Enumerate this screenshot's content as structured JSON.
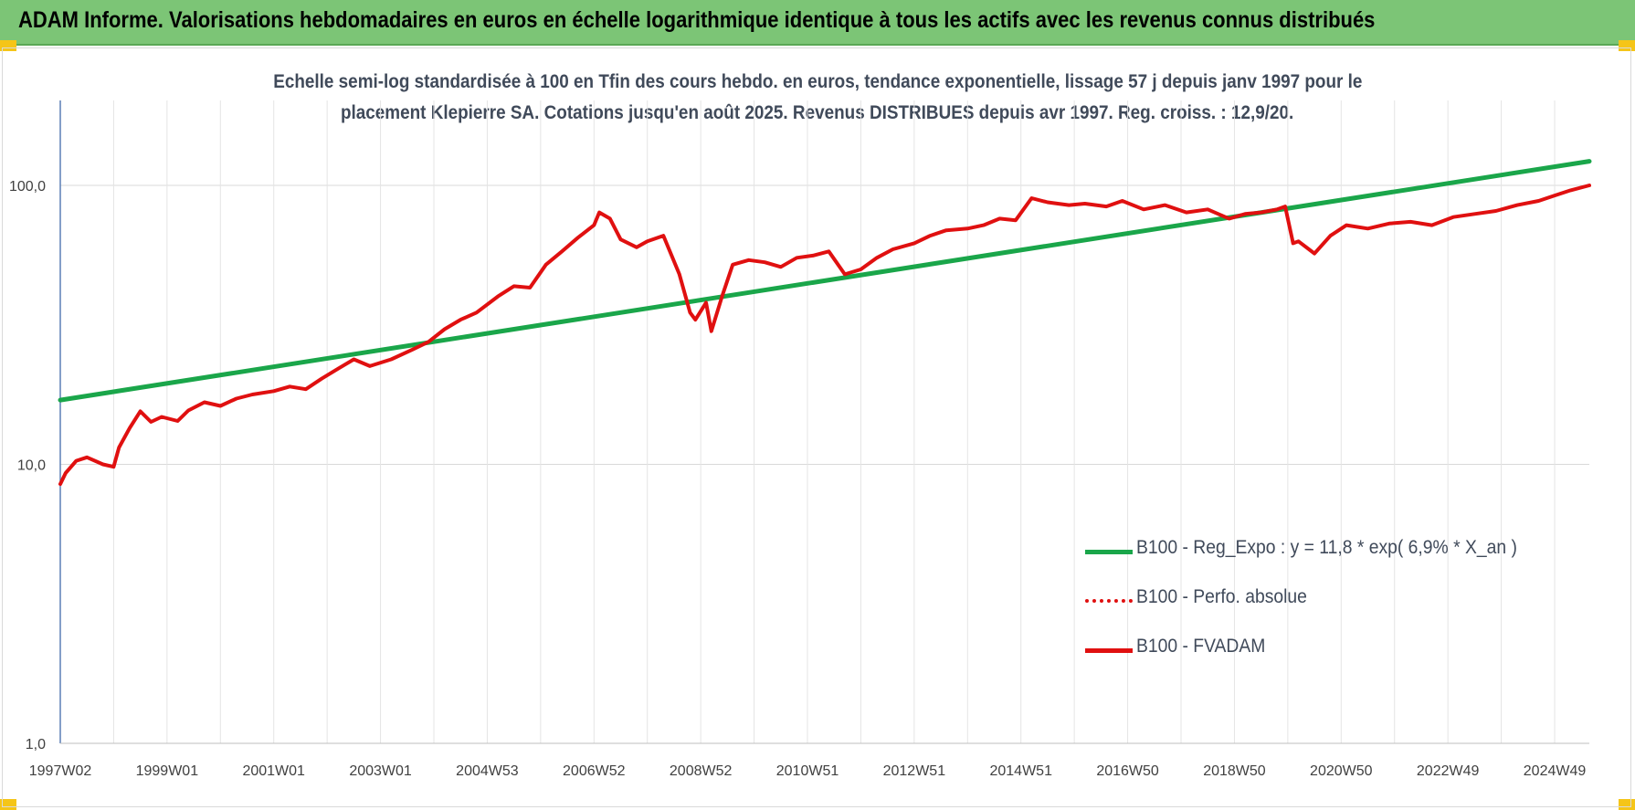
{
  "header": {
    "title": "ADAM Informe. Valorisations hebdomadaires en euros en échelle logarithmique identique à tous les actifs avec les revenus connus distribués"
  },
  "chart_data": {
    "type": "line",
    "title_line1": "Echelle semi-log standardisée à 100 en Tfin des cours hebdo. en euros, tendance exponentielle, lissage 57 j depuis janv 1997 pour le",
    "title_line2": "placement Klepierre SA. Cotations jusqu'en août 2025. Revenus DISTRIBUES depuis avr 1997. Reg. croiss. : 12,9/20.",
    "y_scale": "log",
    "ylim": [
      1,
      200
    ],
    "y_ticks": [
      {
        "value": 1,
        "label": "1,0"
      },
      {
        "value": 10,
        "label": "10,0"
      },
      {
        "value": 100,
        "label": "100,0"
      }
    ],
    "xlim": [
      1997.0,
      2025.65
    ],
    "x_ticks": [
      {
        "value": 1997.0,
        "label": "1997W02"
      },
      {
        "value": 1999.0,
        "label": "1999W01"
      },
      {
        "value": 2001.0,
        "label": "2001W01"
      },
      {
        "value": 2003.0,
        "label": "2003W01"
      },
      {
        "value": 2005.0,
        "label": "2004W53"
      },
      {
        "value": 2007.0,
        "label": "2006W52"
      },
      {
        "value": 2009.0,
        "label": "2008W52"
      },
      {
        "value": 2011.0,
        "label": "2010W51"
      },
      {
        "value": 2013.0,
        "label": "2012W51"
      },
      {
        "value": 2015.0,
        "label": "2014W51"
      },
      {
        "value": 2017.0,
        "label": "2016W50"
      },
      {
        "value": 2019.0,
        "label": "2018W50"
      },
      {
        "value": 2021.0,
        "label": "2020W50"
      },
      {
        "value": 2023.0,
        "label": "2022W49"
      },
      {
        "value": 2025.0,
        "label": "2024W49"
      }
    ],
    "grid": true,
    "legend_position": "bottom-right",
    "series": [
      {
        "name": "B100 - Reg_Expo : y = 11,8 * exp( 6,9% *  X_an )",
        "color": "#1aa64a",
        "style": "solid",
        "x": [
          1997.0,
          2025.65
        ],
        "y": [
          17.0,
          122.0
        ]
      },
      {
        "name": "B100 - Perfo. absolue",
        "color": "#e01010",
        "style": "dotted",
        "x": [],
        "y": []
      },
      {
        "name": "B100 - FVADAM",
        "color": "#e01010",
        "style": "solid",
        "x": [
          1997.0,
          1997.1,
          1997.3,
          1997.5,
          1997.8,
          1998.0,
          1998.1,
          1998.3,
          1998.5,
          1998.7,
          1998.9,
          1999.2,
          1999.4,
          1999.7,
          2000.0,
          2000.3,
          2000.6,
          2001.0,
          2001.3,
          2001.6,
          2001.9,
          2002.2,
          2002.5,
          2002.8,
          2003.2,
          2003.6,
          2003.9,
          2004.2,
          2004.5,
          2004.8,
          2005.2,
          2005.5,
          2005.8,
          2006.1,
          2006.4,
          2006.7,
          2007.0,
          2007.1,
          2007.3,
          2007.5,
          2007.8,
          2008.0,
          2008.3,
          2008.6,
          2008.8,
          2008.9,
          2009.1,
          2009.2,
          2009.4,
          2009.6,
          2009.9,
          2010.2,
          2010.5,
          2010.8,
          2011.1,
          2011.4,
          2011.7,
          2012.0,
          2012.3,
          2012.6,
          2013.0,
          2013.3,
          2013.6,
          2014.0,
          2014.3,
          2014.6,
          2014.9,
          2015.2,
          2015.5,
          2015.9,
          2016.2,
          2016.6,
          2016.9,
          2017.3,
          2017.7,
          2018.1,
          2018.5,
          2018.9,
          2019.2,
          2019.5,
          2019.8,
          2019.95,
          2020.1,
          2020.2,
          2020.5,
          2020.8,
          2021.1,
          2021.5,
          2021.9,
          2022.3,
          2022.7,
          2023.1,
          2023.5,
          2023.9,
          2024.3,
          2024.7,
          2025.0,
          2025.3,
          2025.65
        ],
        "y": [
          8.5,
          9.3,
          10.3,
          10.6,
          10.0,
          9.8,
          11.5,
          13.5,
          15.5,
          14.2,
          14.8,
          14.3,
          15.6,
          16.7,
          16.2,
          17.2,
          17.8,
          18.3,
          19.0,
          18.6,
          20.3,
          22.0,
          23.8,
          22.5,
          23.8,
          25.8,
          27.5,
          30.5,
          33.0,
          35.0,
          40.0,
          43.5,
          43.0,
          52.0,
          58.0,
          65.0,
          72.0,
          80.0,
          76.0,
          64.0,
          60.0,
          63.0,
          66.0,
          48.0,
          35.0,
          33.0,
          38.0,
          30.0,
          40.0,
          52.0,
          54.0,
          53.0,
          51.0,
          55.0,
          56.0,
          58.0,
          48.0,
          50.0,
          55.0,
          59.0,
          62.0,
          66.0,
          69.0,
          70.0,
          72.0,
          76.0,
          75.0,
          90.0,
          87.0,
          85.0,
          86.0,
          84.0,
          88.0,
          82.0,
          85.0,
          80.0,
          82.0,
          76.0,
          79.0,
          80.0,
          82.0,
          84.0,
          62.0,
          63.0,
          57.0,
          66.0,
          72.0,
          70.0,
          73.0,
          74.0,
          72.0,
          77.0,
          79.0,
          81.0,
          85.0,
          88.0,
          92.0,
          96.0,
          100.0
        ]
      }
    ]
  }
}
